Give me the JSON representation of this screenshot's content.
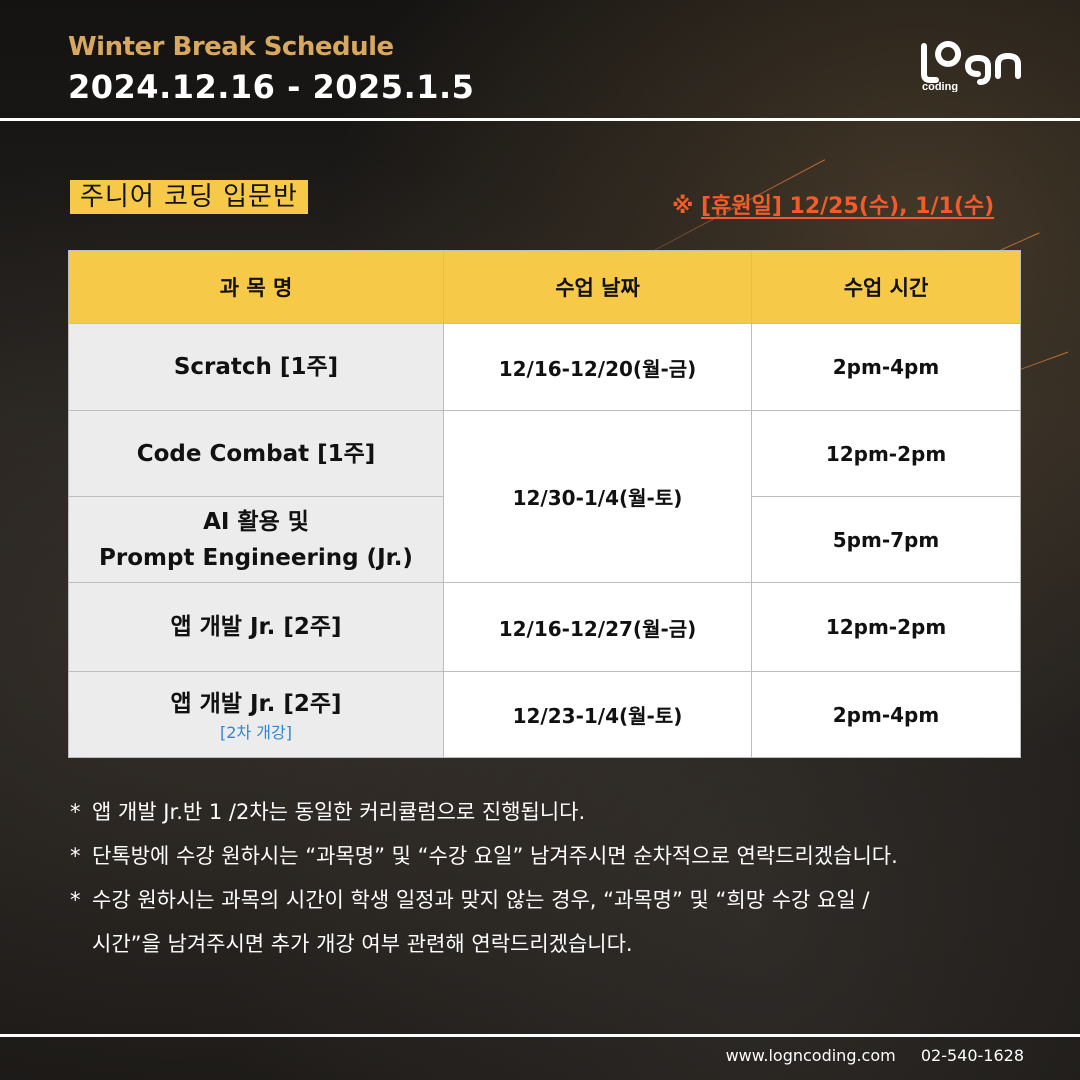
{
  "header": {
    "subtitle": "Winter Break Schedule",
    "date_range": "2024.12.16 - 2025.1.5",
    "logo_text": "logn",
    "logo_subtext": "coding"
  },
  "section": {
    "label": "주니어 코딩 입문반",
    "holiday_prefix": "※ ",
    "holiday_text": "[휴원일] 12/25(수), 1/1(수)"
  },
  "table": {
    "headers": [
      "과 목 명",
      "수업 날짜",
      "수업 시간"
    ],
    "rows": [
      {
        "course": "Scratch [1주]",
        "date": "12/16-12/20(월-금)",
        "time": "2pm-4pm"
      },
      {
        "course": "Code Combat [1주]",
        "date": "12/30-1/4(월-토)",
        "time": "12pm-2pm"
      },
      {
        "course_line1": "AI 활용 및",
        "course_line2": "Prompt Engineering (Jr.)",
        "time": "5pm-7pm"
      },
      {
        "course": "앱 개발 Jr. [2주]",
        "date": "12/16-12/27(월-금)",
        "time": "12pm-2pm"
      },
      {
        "course": "앱 개발 Jr. [2주]",
        "note": "[2차 개강]",
        "date": "12/23-1/4(월-토)",
        "time": "2pm-4pm"
      }
    ]
  },
  "notes": [
    "앱 개발 Jr.반 1 /2차는 동일한 커리큘럼으로 진행됩니다.",
    "단톡방에 수강 원하시는 “과목명” 및 “수강 요일” 남겨주시면 순차적으로 연락드리겠습니다.",
    "수강 원하시는 과목의 시간이 학생 일정과 맞지 않는 경우, “과목명” 및 “희망 수강 요일 /",
    "시간”을 남겨주시면 추가 개강 여부 관련해 연락드리겠습니다."
  ],
  "note_marker": "*",
  "footer": {
    "website": "www.logncoding.com",
    "phone": "02-540-1628"
  },
  "colors": {
    "accent_yellow": "#f7c948",
    "header_gold": "#d9a860",
    "holiday_red": "#f25c2b",
    "note_blue": "#2f86d4"
  }
}
